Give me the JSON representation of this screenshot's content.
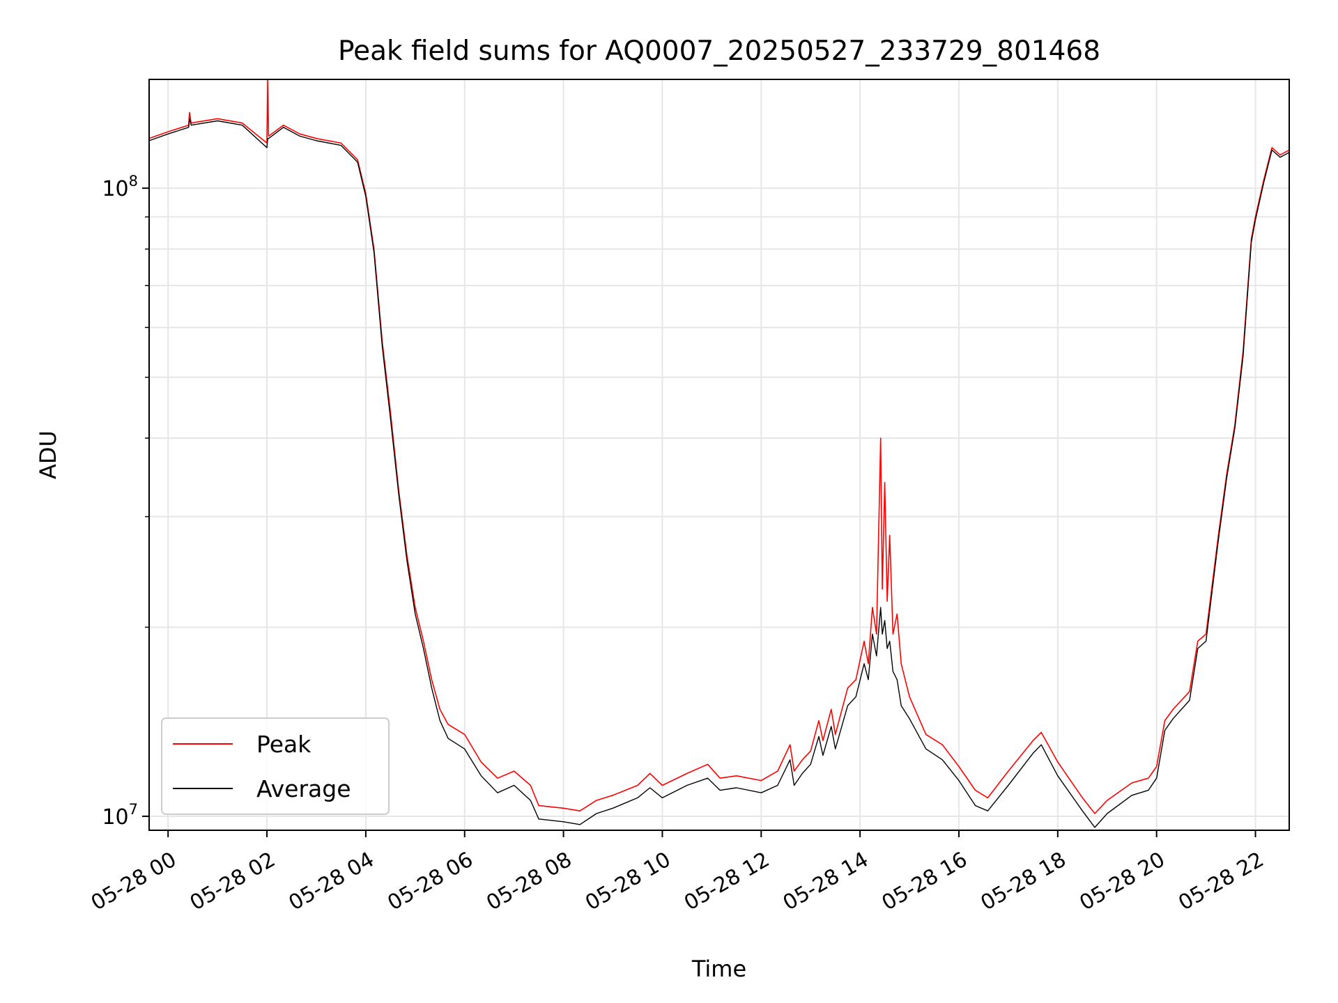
{
  "chart_data": {
    "type": "line",
    "title": "Peak field sums for AQ0007_20250527_233729_801468",
    "xlabel": "Time",
    "ylabel": "ADU",
    "y_scale": "log",
    "ylim": [
      9500000,
      149000000
    ],
    "xlim": [
      "2025-05-27T23:37",
      "2025-05-28T22:41"
    ],
    "x_ticks": [
      {
        "time": "2025-05-28T00:00",
        "label": "05-28 00"
      },
      {
        "time": "2025-05-28T02:00",
        "label": "05-28 02"
      },
      {
        "time": "2025-05-28T04:00",
        "label": "05-28 04"
      },
      {
        "time": "2025-05-28T06:00",
        "label": "05-28 06"
      },
      {
        "time": "2025-05-28T08:00",
        "label": "05-28 08"
      },
      {
        "time": "2025-05-28T10:00",
        "label": "05-28 10"
      },
      {
        "time": "2025-05-28T12:00",
        "label": "05-28 12"
      },
      {
        "time": "2025-05-28T14:00",
        "label": "05-28 14"
      },
      {
        "time": "2025-05-28T16:00",
        "label": "05-28 16"
      },
      {
        "time": "2025-05-28T18:00",
        "label": "05-28 18"
      },
      {
        "time": "2025-05-28T20:00",
        "label": "05-28 20"
      },
      {
        "time": "2025-05-28T22:00",
        "label": "05-28 22"
      }
    ],
    "y_major_ticks": [
      {
        "value": 10000000,
        "base": "10",
        "exp": "7"
      },
      {
        "value": 100000000,
        "base": "10",
        "exp": "8"
      }
    ],
    "grid": true,
    "legend_position": "lower-left",
    "series": [
      {
        "name": "Peak",
        "color": "#ff0000",
        "points": [
          [
            "2025-05-27T23:37",
            120000000
          ],
          [
            "2025-05-28T00:00",
            123000000
          ],
          [
            "2025-05-28T00:25",
            126000000
          ],
          [
            "2025-05-28T00:26",
            132000000
          ],
          [
            "2025-05-28T00:28",
            127000000
          ],
          [
            "2025-05-28T01:00",
            129000000
          ],
          [
            "2025-05-28T01:30",
            127000000
          ],
          [
            "2025-05-28T02:00",
            118000000
          ],
          [
            "2025-05-28T02:01",
            149000000
          ],
          [
            "2025-05-28T02:02",
            121000000
          ],
          [
            "2025-05-28T02:20",
            126000000
          ],
          [
            "2025-05-28T02:40",
            122000000
          ],
          [
            "2025-05-28T03:00",
            120000000
          ],
          [
            "2025-05-28T03:30",
            118000000
          ],
          [
            "2025-05-28T03:50",
            111000000
          ],
          [
            "2025-05-28T04:00",
            98000000
          ],
          [
            "2025-05-28T04:10",
            80000000
          ],
          [
            "2025-05-28T04:20",
            57000000
          ],
          [
            "2025-05-28T04:30",
            44000000
          ],
          [
            "2025-05-28T04:40",
            33000000
          ],
          [
            "2025-05-28T04:50",
            26000000
          ],
          [
            "2025-05-28T05:00",
            21500000
          ],
          [
            "2025-05-28T05:10",
            19000000
          ],
          [
            "2025-05-28T05:20",
            16500000
          ],
          [
            "2025-05-28T05:30",
            14800000
          ],
          [
            "2025-05-28T05:40",
            14000000
          ],
          [
            "2025-05-28T06:00",
            13500000
          ],
          [
            "2025-05-28T06:20",
            12200000
          ],
          [
            "2025-05-28T06:40",
            11500000
          ],
          [
            "2025-05-28T07:00",
            11800000
          ],
          [
            "2025-05-28T07:20",
            11200000
          ],
          [
            "2025-05-28T07:30",
            10400000
          ],
          [
            "2025-05-28T08:00",
            10300000
          ],
          [
            "2025-05-28T08:20",
            10200000
          ],
          [
            "2025-05-28T08:40",
            10600000
          ],
          [
            "2025-05-28T09:00",
            10800000
          ],
          [
            "2025-05-28T09:30",
            11200000
          ],
          [
            "2025-05-28T09:45",
            11700000
          ],
          [
            "2025-05-28T10:00",
            11200000
          ],
          [
            "2025-05-28T10:30",
            11700000
          ],
          [
            "2025-05-28T10:55",
            12100000
          ],
          [
            "2025-05-28T11:10",
            11500000
          ],
          [
            "2025-05-28T11:30",
            11600000
          ],
          [
            "2025-05-28T12:00",
            11400000
          ],
          [
            "2025-05-28T12:20",
            11800000
          ],
          [
            "2025-05-28T12:35",
            13000000
          ],
          [
            "2025-05-28T12:40",
            11800000
          ],
          [
            "2025-05-28T12:50",
            12300000
          ],
          [
            "2025-05-28T13:00",
            12700000
          ],
          [
            "2025-05-28T13:10",
            14200000
          ],
          [
            "2025-05-28T13:15",
            13200000
          ],
          [
            "2025-05-28T13:25",
            14800000
          ],
          [
            "2025-05-28T13:30",
            13500000
          ],
          [
            "2025-05-28T13:45",
            16000000
          ],
          [
            "2025-05-28T13:55",
            16500000
          ],
          [
            "2025-05-28T14:05",
            19000000
          ],
          [
            "2025-05-28T14:10",
            17500000
          ],
          [
            "2025-05-28T14:15",
            21500000
          ],
          [
            "2025-05-28T14:20",
            19500000
          ],
          [
            "2025-05-28T14:25",
            40000000
          ],
          [
            "2025-05-28T14:27",
            23000000
          ],
          [
            "2025-05-28T14:30",
            34000000
          ],
          [
            "2025-05-28T14:33",
            22000000
          ],
          [
            "2025-05-28T14:36",
            28000000
          ],
          [
            "2025-05-28T14:40",
            19500000
          ],
          [
            "2025-05-28T14:45",
            21000000
          ],
          [
            "2025-05-28T14:50",
            17500000
          ],
          [
            "2025-05-28T15:00",
            15500000
          ],
          [
            "2025-05-28T15:20",
            13500000
          ],
          [
            "2025-05-28T15:40",
            13000000
          ],
          [
            "2025-05-28T16:00",
            12000000
          ],
          [
            "2025-05-28T16:20",
            11000000
          ],
          [
            "2025-05-28T16:35",
            10700000
          ],
          [
            "2025-05-28T17:00",
            11800000
          ],
          [
            "2025-05-28T17:30",
            13200000
          ],
          [
            "2025-05-28T17:40",
            13600000
          ],
          [
            "2025-05-28T18:00",
            12200000
          ],
          [
            "2025-05-28T18:30",
            10700000
          ],
          [
            "2025-05-28T18:45",
            10100000
          ],
          [
            "2025-05-28T19:00",
            10600000
          ],
          [
            "2025-05-28T19:30",
            11300000
          ],
          [
            "2025-05-28T19:50",
            11500000
          ],
          [
            "2025-05-28T20:00",
            12000000
          ],
          [
            "2025-05-28T20:10",
            14200000
          ],
          [
            "2025-05-28T20:20",
            14800000
          ],
          [
            "2025-05-28T20:40",
            15800000
          ],
          [
            "2025-05-28T20:50",
            19000000
          ],
          [
            "2025-05-28T21:00",
            19500000
          ],
          [
            "2025-05-28T21:05",
            22000000
          ],
          [
            "2025-05-28T21:15",
            28000000
          ],
          [
            "2025-05-28T21:25",
            35000000
          ],
          [
            "2025-05-28T21:35",
            42000000
          ],
          [
            "2025-05-28T21:45",
            55000000
          ],
          [
            "2025-05-28T21:55",
            83000000
          ],
          [
            "2025-05-28T22:00",
            90000000
          ],
          [
            "2025-05-28T22:10",
            103000000
          ],
          [
            "2025-05-28T22:20",
            116000000
          ],
          [
            "2025-05-28T22:30",
            113000000
          ],
          [
            "2025-05-28T22:41",
            115000000
          ]
        ]
      },
      {
        "name": "Average",
        "color": "#000000",
        "points": [
          [
            "2025-05-27T23:37",
            119000000
          ],
          [
            "2025-05-28T00:00",
            122000000
          ],
          [
            "2025-05-28T00:25",
            125000000
          ],
          [
            "2025-05-28T00:26",
            129000000
          ],
          [
            "2025-05-28T00:28",
            126000000
          ],
          [
            "2025-05-28T01:00",
            128000000
          ],
          [
            "2025-05-28T01:30",
            126000000
          ],
          [
            "2025-05-28T02:00",
            116000000
          ],
          [
            "2025-05-28T02:01",
            120000000
          ],
          [
            "2025-05-28T02:02",
            120000000
          ],
          [
            "2025-05-28T02:20",
            125000000
          ],
          [
            "2025-05-28T02:40",
            121000000
          ],
          [
            "2025-05-28T03:00",
            119000000
          ],
          [
            "2025-05-28T03:30",
            117000000
          ],
          [
            "2025-05-28T03:50",
            110000000
          ],
          [
            "2025-05-28T04:00",
            97000000
          ],
          [
            "2025-05-28T04:10",
            79000000
          ],
          [
            "2025-05-28T04:20",
            56000000
          ],
          [
            "2025-05-28T04:30",
            43000000
          ],
          [
            "2025-05-28T04:40",
            32500000
          ],
          [
            "2025-05-28T04:50",
            25500000
          ],
          [
            "2025-05-28T05:00",
            21000000
          ],
          [
            "2025-05-28T05:10",
            18500000
          ],
          [
            "2025-05-28T05:20",
            16000000
          ],
          [
            "2025-05-28T05:30",
            14200000
          ],
          [
            "2025-05-28T05:40",
            13300000
          ],
          [
            "2025-05-28T06:00",
            12800000
          ],
          [
            "2025-05-28T06:20",
            11600000
          ],
          [
            "2025-05-28T06:40",
            10900000
          ],
          [
            "2025-05-28T07:00",
            11200000
          ],
          [
            "2025-05-28T07:20",
            10600000
          ],
          [
            "2025-05-28T07:30",
            9900000
          ],
          [
            "2025-05-28T08:00",
            9800000
          ],
          [
            "2025-05-28T08:20",
            9700000
          ],
          [
            "2025-05-28T08:40",
            10100000
          ],
          [
            "2025-05-28T09:00",
            10300000
          ],
          [
            "2025-05-28T09:30",
            10700000
          ],
          [
            "2025-05-28T09:45",
            11100000
          ],
          [
            "2025-05-28T10:00",
            10700000
          ],
          [
            "2025-05-28T10:30",
            11200000
          ],
          [
            "2025-05-28T10:55",
            11500000
          ],
          [
            "2025-05-28T11:10",
            11000000
          ],
          [
            "2025-05-28T11:30",
            11100000
          ],
          [
            "2025-05-28T12:00",
            10900000
          ],
          [
            "2025-05-28T12:20",
            11200000
          ],
          [
            "2025-05-28T12:35",
            12300000
          ],
          [
            "2025-05-28T12:40",
            11200000
          ],
          [
            "2025-05-28T12:50",
            11700000
          ],
          [
            "2025-05-28T13:00",
            12100000
          ],
          [
            "2025-05-28T13:10",
            13400000
          ],
          [
            "2025-05-28T13:15",
            12500000
          ],
          [
            "2025-05-28T13:25",
            13900000
          ],
          [
            "2025-05-28T13:30",
            12800000
          ],
          [
            "2025-05-28T13:45",
            15000000
          ],
          [
            "2025-05-28T13:55",
            15500000
          ],
          [
            "2025-05-28T14:05",
            17500000
          ],
          [
            "2025-05-28T14:10",
            16500000
          ],
          [
            "2025-05-28T14:15",
            19500000
          ],
          [
            "2025-05-28T14:20",
            18000000
          ],
          [
            "2025-05-28T14:25",
            21500000
          ],
          [
            "2025-05-28T14:27",
            19500000
          ],
          [
            "2025-05-28T14:30",
            20500000
          ],
          [
            "2025-05-28T14:33",
            18500000
          ],
          [
            "2025-05-28T14:36",
            19000000
          ],
          [
            "2025-05-28T14:40",
            17000000
          ],
          [
            "2025-05-28T14:45",
            16500000
          ],
          [
            "2025-05-28T14:50",
            15000000
          ],
          [
            "2025-05-28T15:00",
            14300000
          ],
          [
            "2025-05-28T15:20",
            12800000
          ],
          [
            "2025-05-28T15:40",
            12300000
          ],
          [
            "2025-05-28T16:00",
            11400000
          ],
          [
            "2025-05-28T16:20",
            10400000
          ],
          [
            "2025-05-28T16:35",
            10200000
          ],
          [
            "2025-05-28T17:00",
            11200000
          ],
          [
            "2025-05-28T17:30",
            12600000
          ],
          [
            "2025-05-28T17:40",
            13000000
          ],
          [
            "2025-05-28T18:00",
            11600000
          ],
          [
            "2025-05-28T18:30",
            10200000
          ],
          [
            "2025-05-28T18:45",
            9600000
          ],
          [
            "2025-05-28T19:00",
            10100000
          ],
          [
            "2025-05-28T19:30",
            10800000
          ],
          [
            "2025-05-28T19:50",
            11000000
          ],
          [
            "2025-05-28T20:00",
            11500000
          ],
          [
            "2025-05-28T20:10",
            13700000
          ],
          [
            "2025-05-28T20:20",
            14300000
          ],
          [
            "2025-05-28T20:40",
            15300000
          ],
          [
            "2025-05-28T20:50",
            18500000
          ],
          [
            "2025-05-28T21:00",
            19000000
          ],
          [
            "2025-05-28T21:05",
            21500000
          ],
          [
            "2025-05-28T21:15",
            27500000
          ],
          [
            "2025-05-28T21:25",
            34500000
          ],
          [
            "2025-05-28T21:35",
            41500000
          ],
          [
            "2025-05-28T21:45",
            54000000
          ],
          [
            "2025-05-28T21:55",
            82000000
          ],
          [
            "2025-05-28T22:00",
            89000000
          ],
          [
            "2025-05-28T22:10",
            102000000
          ],
          [
            "2025-05-28T22:20",
            115000000
          ],
          [
            "2025-05-28T22:30",
            112000000
          ],
          [
            "2025-05-28T22:41",
            114000000
          ]
        ]
      }
    ]
  }
}
